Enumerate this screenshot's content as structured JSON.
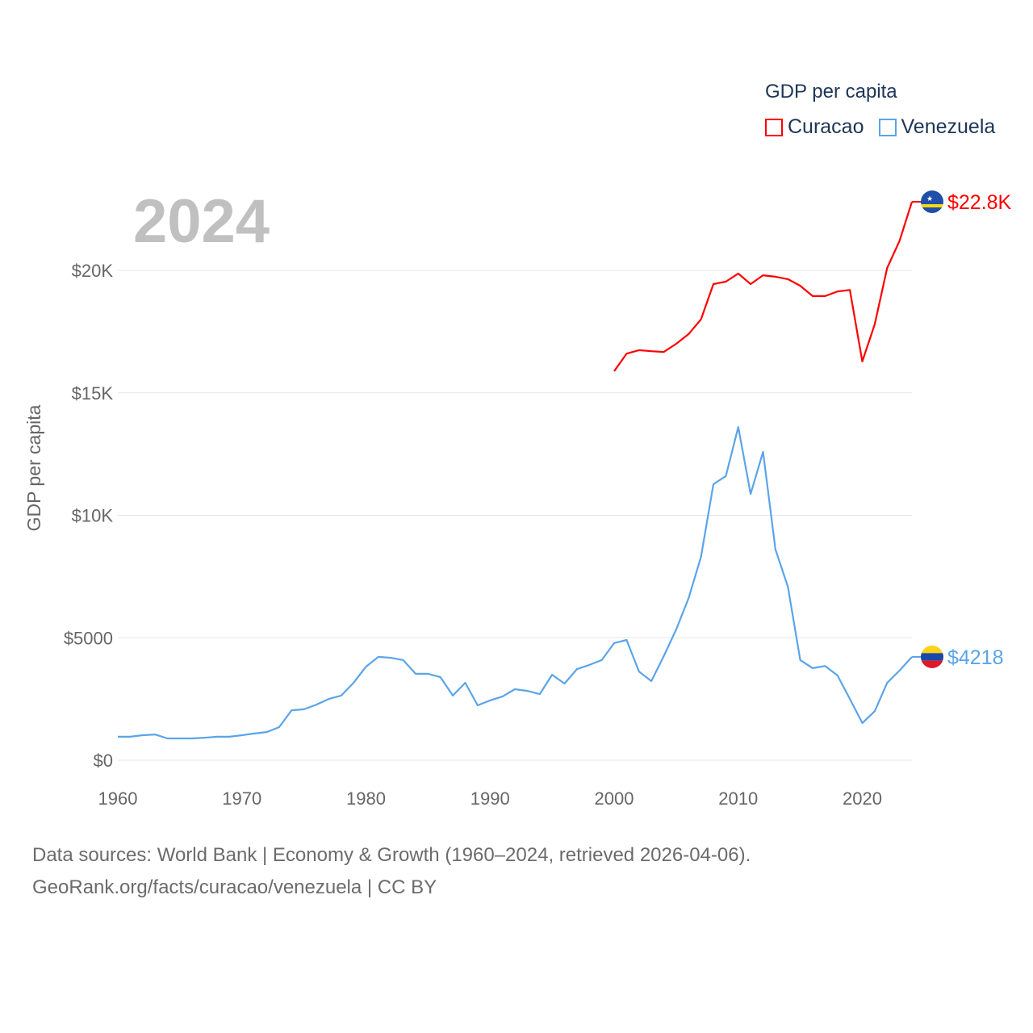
{
  "chart_data": {
    "type": "line",
    "title": "GDP per capita",
    "year_label": "2024",
    "ylabel": "GDP per capita",
    "xlabel": "",
    "xlim": [
      1960,
      2024
    ],
    "ylim": [
      0,
      22800
    ],
    "x_ticks": [
      1960,
      1970,
      1980,
      1990,
      2000,
      2010,
      2020
    ],
    "x_tick_labels": [
      "1960",
      "1970",
      "1980",
      "1990",
      "2000",
      "2010",
      "2020"
    ],
    "y_ticks": [
      0,
      5000,
      10000,
      15000,
      20000
    ],
    "y_tick_labels": [
      "$0",
      "$5000",
      "$10K",
      "$15K",
      "$20K"
    ],
    "grid": true,
    "legend_position": "top-right",
    "series": [
      {
        "name": "Curacao",
        "color": "#ff0000",
        "end_label": "$22.8K",
        "flag": "curacao-flag",
        "start_year": 2000,
        "values": [
          15880,
          16600,
          16740,
          16700,
          16670,
          17000,
          17400,
          18000,
          19440,
          19540,
          19870,
          19440,
          19800,
          19740,
          19640,
          19370,
          18950,
          18950,
          19140,
          19200,
          16280,
          17800,
          20100,
          21200,
          22800
        ]
      },
      {
        "name": "Venezuela",
        "color": "#5ba4e8",
        "end_label": "$4218",
        "flag": "venezuela-flag",
        "start_year": 1960,
        "values": [
          960,
          960,
          1020,
          1050,
          890,
          890,
          890,
          920,
          960,
          960,
          1020,
          1090,
          1150,
          1350,
          2040,
          2080,
          2270,
          2500,
          2640,
          3160,
          3820,
          4220,
          4180,
          4090,
          3530,
          3530,
          3390,
          2640,
          3160,
          2240,
          2440,
          2600,
          2900,
          2830,
          2700,
          3490,
          3130,
          3720,
          3890,
          4090,
          4780,
          4910,
          3620,
          3230,
          4250,
          5340,
          6620,
          8300,
          11270,
          11600,
          13600,
          10870,
          12590,
          8600,
          7080,
          4090,
          3760,
          3850,
          3460,
          2500,
          1520,
          2000,
          3160,
          3660,
          4218
        ]
      }
    ]
  },
  "footer": {
    "line1": "Data sources: World Bank | Economy & Growth (1960–2024, retrieved 2026-04-06).",
    "line2": "GeoRank.org/facts/curacao/venezuela | CC BY"
  }
}
